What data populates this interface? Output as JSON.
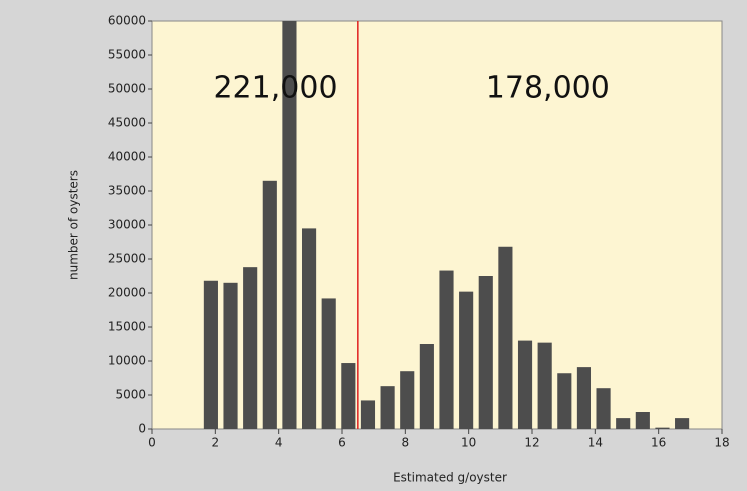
{
  "chart_data": {
    "type": "histogram",
    "xlabel": "Estimated g/oyster",
    "ylabel": "number of oysters",
    "bins": [
      1.55,
      2.17,
      2.79,
      3.41,
      4.03,
      4.65,
      5.27,
      5.89,
      6.51,
      7.13,
      7.75,
      8.37,
      8.99,
      9.61,
      10.23,
      10.85,
      11.47,
      12.09,
      12.71,
      13.33,
      13.95,
      14.57,
      15.19,
      15.81,
      16.43,
      17.05
    ],
    "values": [
      21800,
      21500,
      23800,
      36500,
      60000,
      29500,
      19200,
      9700,
      4200,
      6300,
      8500,
      12500,
      23300,
      20200,
      22500,
      26800,
      13000,
      12700,
      8200,
      9100,
      6000,
      1600,
      2500,
      200,
      1600
    ],
    "color": "#4d4d4d",
    "vline": 6.5,
    "vline_color": "#e02020",
    "annotations": [
      {
        "text": "221,000",
        "x": 3.9,
        "y": 50000
      },
      {
        "text": "178,000",
        "x": 12.5,
        "y": 50000
      }
    ],
    "xlim": [
      0,
      18
    ],
    "xticks": [
      0,
      2,
      4,
      6,
      8,
      10,
      12,
      14,
      16,
      18
    ],
    "ylim": [
      0,
      60000
    ],
    "yticks": [
      0,
      5000,
      10000,
      15000,
      20000,
      25000,
      30000,
      35000,
      40000,
      45000,
      50000,
      55000,
      60000
    ]
  }
}
